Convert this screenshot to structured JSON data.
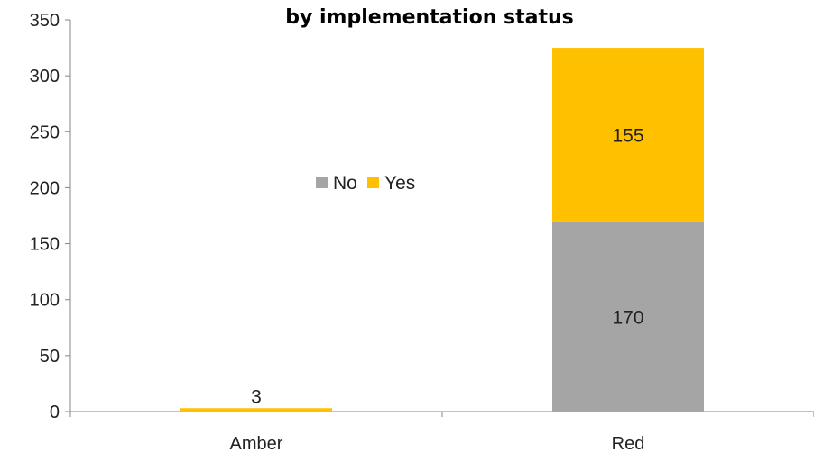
{
  "chart_data": {
    "type": "bar",
    "stacked": true,
    "title": "by implementation status",
    "categories": [
      "Amber",
      "Red"
    ],
    "series": [
      {
        "name": "No",
        "values": [
          0,
          170
        ],
        "color": "#a5a5a5"
      },
      {
        "name": "Yes",
        "values": [
          3,
          155
        ],
        "color": "#ffc000"
      }
    ],
    "data_labels": [
      {
        "category": "Amber",
        "series": "Yes",
        "text": "3"
      },
      {
        "category": "Red",
        "series": "No",
        "text": "170"
      },
      {
        "category": "Red",
        "series": "Yes",
        "text": "155"
      }
    ],
    "ylim": [
      0,
      350
    ],
    "yticks": [
      0,
      50,
      100,
      150,
      200,
      250,
      300,
      350
    ],
    "grid": false,
    "legend": {
      "position": "center",
      "entries": [
        "No",
        "Yes"
      ]
    }
  }
}
